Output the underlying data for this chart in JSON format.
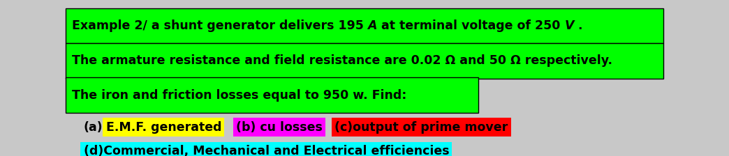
{
  "bg_color": "#ffffff",
  "outer_bg": "#c8c8c8",
  "fig_width": 10.44,
  "fig_height": 2.24,
  "dpi": 100,
  "line1_pre": "Example 2/ a shunt generator delivers 195 ",
  "line1_A": "A",
  "line1_mid": " at terminal voltage of 250 ",
  "line1_V": "V",
  "line1_end": " .",
  "line2": "The armature resistance and field resistance are 0.02 Ω and 50 Ω respectively.",
  "line3": "The iron and friction losses equal to 950 w. Find:",
  "green_bg": "#00ff00",
  "yellow_bg": "#ffff00",
  "magenta_bg": "#ff00ff",
  "red_bg": "#ff0000",
  "cyan_bg": "#00ffff",
  "text_color": "#000000",
  "part_a_prefix": "(a)",
  "part_a_text": "E.M.F. generated",
  "part_b_text": "(b) cu losses",
  "part_c_text": "(c)output of prime mover",
  "part_d_text": "(d)Commercial, Mechanical and Electrical efficiencies",
  "font_size": 12.5,
  "font_weight": "bold"
}
